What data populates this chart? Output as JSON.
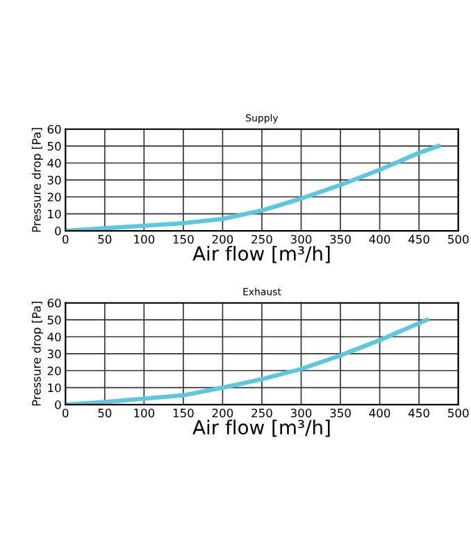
{
  "chart_data": [
    {
      "type": "line",
      "title": "Supply",
      "xlabel": "Air flow [m³/h]",
      "ylabel": "Pressure drop [Pa]",
      "x": [
        0,
        50,
        100,
        150,
        200,
        250,
        300,
        350,
        400,
        450,
        475
      ],
      "series": [
        {
          "color": "#5bc8e0",
          "values": [
            0,
            1.5,
            3,
            4.5,
            7,
            12,
            19,
            27,
            36,
            46,
            50
          ]
        }
      ],
      "xlim": [
        0,
        500
      ],
      "ylim": [
        0,
        60
      ],
      "xticks": [
        0,
        50,
        100,
        150,
        200,
        250,
        300,
        350,
        400,
        450,
        500
      ],
      "yticks": [
        0,
        10,
        20,
        30,
        40,
        50,
        60
      ],
      "grid": true,
      "marker": "none",
      "line_style": "solid"
    },
    {
      "type": "line",
      "title": "Exhaust",
      "xlabel": "Air flow [m³/h]",
      "ylabel": "Pressure drop [Pa]",
      "x": [
        0,
        50,
        100,
        150,
        200,
        250,
        300,
        350,
        400,
        450,
        460
      ],
      "series": [
        {
          "color": "#5bc8e0",
          "values": [
            0,
            1.5,
            3.5,
            5.5,
            10,
            15,
            21,
            29,
            38,
            48,
            50
          ]
        }
      ],
      "xlim": [
        0,
        500
      ],
      "ylim": [
        0,
        60
      ],
      "xticks": [
        0,
        50,
        100,
        150,
        200,
        250,
        300,
        350,
        400,
        450,
        500
      ],
      "yticks": [
        0,
        10,
        20,
        30,
        40,
        50,
        60
      ],
      "grid": true,
      "marker": "none",
      "line_style": "solid"
    }
  ]
}
